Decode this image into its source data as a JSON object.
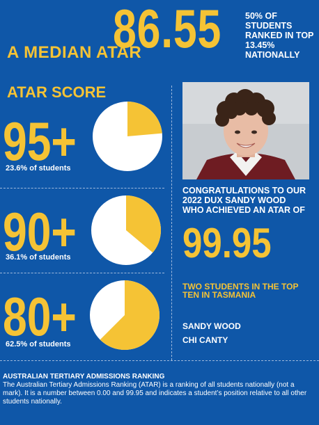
{
  "header": {
    "median_label": "A MEDIAN ATAR",
    "median_value": "86.55",
    "note": "50% OF STUDENTS RANKED IN TOP 13.45% NATIONALLY"
  },
  "atar_scores": {
    "title": "ATAR SCORE",
    "items": [
      {
        "score": "95+",
        "caption": "23.6% of students",
        "fraction": 0.236
      },
      {
        "score": "90+",
        "caption": "36.1% of students",
        "fraction": 0.361
      },
      {
        "score": "80+",
        "caption": "62.5% of students",
        "fraction": 0.625
      }
    ]
  },
  "dux": {
    "congrats": "CONGRATULATIONS TO OUR 2022 DUX SANDY WOOD WHO ACHIEVED AN ATAR OF",
    "score": "99.95"
  },
  "top_ten": {
    "title": "TWO STUDENTS IN THE TOP TEN IN TASMANIA",
    "names": [
      "SANDY WOOD",
      "CHI CANTY"
    ]
  },
  "atar_info": {
    "title": "AUSTRALIAN TERTIARY ADMISSIONS RANKING",
    "text": "The Australian Tertiary Admissions Ranking (ATAR) is a ranking of all students nationally (not a mark). It is a number between 0.00 and 99.95 and indicates a student’s position relative to all other students nationally."
  },
  "colors": {
    "background": "#0f57a8",
    "accent": "#f5c335",
    "pie_base": "#ffffff"
  }
}
